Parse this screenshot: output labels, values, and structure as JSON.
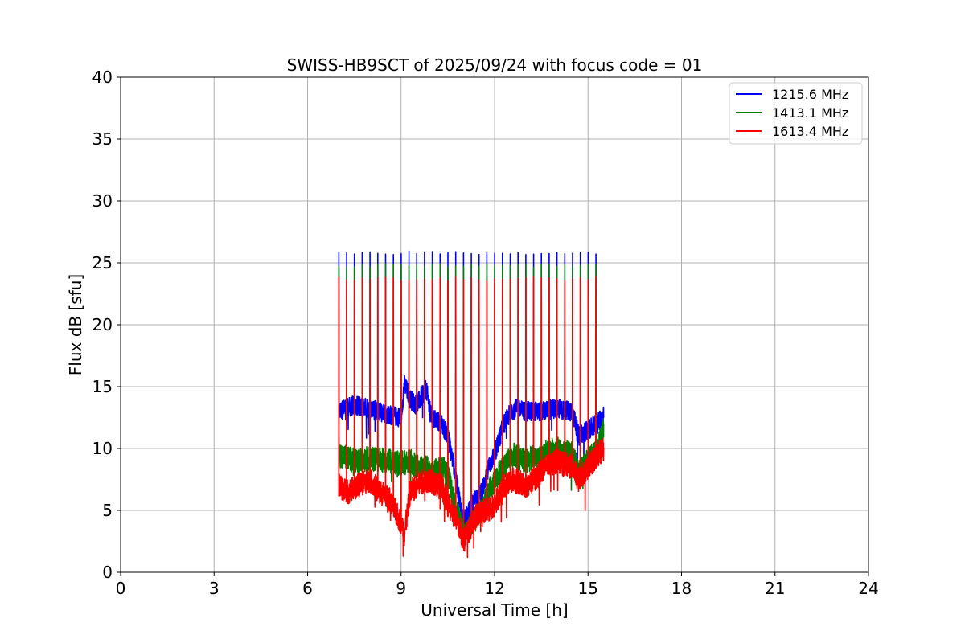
{
  "chart_data": {
    "type": "line",
    "title": "SWISS-HB9SCT of 2025/09/24 with focus code = 01",
    "xlabel": "Universal Time [h]",
    "ylabel": "Flux dB [sfu]",
    "xlim": [
      0,
      24
    ],
    "ylim": [
      0,
      40
    ],
    "xticks": [
      0,
      3,
      6,
      9,
      12,
      15,
      18,
      21,
      24
    ],
    "yticks": [
      0,
      5,
      10,
      15,
      20,
      25,
      30,
      35,
      40
    ],
    "xtick_labels": [
      "0",
      "3",
      "6",
      "9",
      "12",
      "15",
      "18",
      "21",
      "24"
    ],
    "ytick_labels": [
      "0",
      "5",
      "10",
      "15",
      "20",
      "25",
      "30",
      "35",
      "40"
    ],
    "grid": true,
    "legend_position": "top-right",
    "calibration_spike_times": [
      7.0,
      7.25,
      7.5,
      7.75,
      8.0,
      8.25,
      8.5,
      8.75,
      9.0,
      9.25,
      9.5,
      9.75,
      10.0,
      10.25,
      10.5,
      10.75,
      11.0,
      11.25,
      11.5,
      11.75,
      12.0,
      12.25,
      12.5,
      12.75,
      13.0,
      13.25,
      13.5,
      13.75,
      14.0,
      14.25,
      14.5,
      14.75,
      15.0,
      15.25
    ],
    "series": [
      {
        "name": "1215.6 MHz",
        "color": "#0000ff",
        "spike_peak": 25.8,
        "x": [
          7.0,
          7.5,
          8.0,
          8.5,
          9.0,
          9.1,
          9.3,
          9.5,
          9.8,
          10.0,
          10.3,
          10.5,
          10.7,
          10.9,
          11.0,
          11.2,
          11.4,
          11.6,
          11.8,
          12.0,
          12.3,
          12.6,
          13.0,
          13.5,
          14.0,
          14.5,
          14.7,
          15.0,
          15.3,
          15.5
        ],
        "y": [
          13.0,
          13.5,
          13.2,
          12.8,
          12.5,
          15.2,
          14.0,
          13.5,
          14.8,
          12.5,
          12.0,
          11.0,
          8.5,
          5.5,
          4.0,
          5.0,
          6.0,
          6.5,
          8.5,
          9.5,
          12.0,
          13.2,
          13.0,
          13.0,
          13.2,
          13.0,
          11.0,
          11.5,
          12.0,
          12.8
        ]
      },
      {
        "name": "1413.1 MHz",
        "color": "#008000",
        "spike_peak": 24.8,
        "x": [
          7.0,
          7.5,
          8.0,
          8.5,
          9.0,
          9.3,
          9.5,
          9.8,
          10.0,
          10.3,
          10.5,
          10.7,
          10.9,
          11.0,
          11.2,
          11.4,
          11.6,
          11.8,
          12.0,
          12.3,
          12.6,
          13.0,
          13.5,
          14.0,
          14.5,
          14.7,
          15.0,
          15.3,
          15.5
        ],
        "y": [
          9.5,
          9.0,
          9.2,
          9.0,
          8.8,
          9.0,
          8.5,
          8.5,
          8.0,
          8.5,
          8.0,
          5.5,
          4.0,
          3.0,
          3.5,
          4.5,
          5.0,
          6.5,
          7.5,
          8.5,
          9.5,
          9.0,
          9.5,
          10.0,
          9.5,
          8.0,
          9.0,
          10.0,
          11.5
        ]
      },
      {
        "name": "1613.4 MHz",
        "color": "#ff0000",
        "spike_peak": 23.7,
        "x": [
          7.0,
          7.3,
          7.6,
          8.0,
          8.3,
          8.6,
          9.0,
          9.1,
          9.3,
          9.5,
          9.8,
          10.0,
          10.3,
          10.5,
          10.7,
          10.9,
          11.0,
          11.2,
          11.4,
          11.6,
          11.8,
          12.0,
          12.3,
          12.6,
          13.0,
          13.3,
          13.6,
          14.0,
          14.5,
          14.7,
          15.0,
          15.3,
          15.5
        ],
        "y": [
          7.0,
          6.5,
          7.0,
          7.5,
          6.5,
          6.0,
          4.0,
          3.0,
          6.5,
          7.0,
          7.5,
          7.2,
          7.0,
          5.5,
          4.5,
          3.5,
          2.5,
          3.5,
          4.5,
          5.0,
          5.0,
          5.5,
          7.0,
          7.5,
          7.0,
          7.5,
          8.5,
          9.0,
          8.5,
          7.5,
          8.5,
          9.5,
          10.0
        ]
      }
    ]
  }
}
